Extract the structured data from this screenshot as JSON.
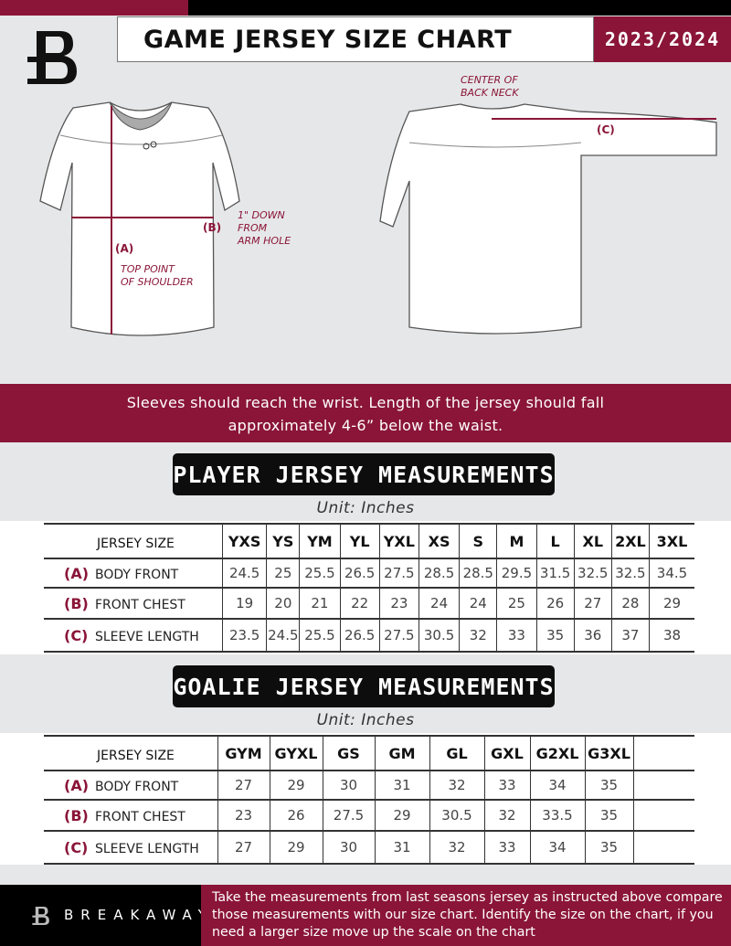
{
  "header": {
    "title": "GAME JERSEY SIZE CHART",
    "season": "2023/2024",
    "logo_letter": "B"
  },
  "diagram": {
    "front_labels": {
      "a": "(A)",
      "a_note": "TOP POINT\nOF SHOULDER",
      "b": "(B)",
      "b_note": "1\" DOWN\nFROM\nARM HOLE"
    },
    "back_labels": {
      "c": "(C)",
      "c_note": "CENTER OF\nBACK NECK"
    }
  },
  "banner": {
    "line1": "Sleeves should reach the wrist. Length of the jersey should fall",
    "line2": "approximately 4-6” below the waist."
  },
  "player": {
    "heading": "PLAYER JERSEY MEASUREMENTS",
    "unit": "Unit: Inches",
    "size_header": "JERSEY SIZE",
    "sizes": [
      "YXS",
      "YS",
      "YM",
      "YL",
      "YXL",
      "XS",
      "S",
      "M",
      "L",
      "XL",
      "2XL",
      "3XL"
    ],
    "rows": [
      {
        "letter": "(A)",
        "label": "BODY FRONT",
        "values": [
          "24.5",
          "25",
          "25.5",
          "26.5",
          "27.5",
          "28.5",
          "28.5",
          "29.5",
          "31.5",
          "32.5",
          "32.5",
          "34.5"
        ]
      },
      {
        "letter": "(B)",
        "label": "FRONT CHEST",
        "values": [
          "19",
          "20",
          "21",
          "22",
          "23",
          "24",
          "24",
          "25",
          "26",
          "27",
          "28",
          "29"
        ]
      },
      {
        "letter": "(C)",
        "label": "SLEEVE LENGTH",
        "values": [
          "23.5",
          "24.5",
          "25.5",
          "26.5",
          "27.5",
          "30.5",
          "32",
          "33",
          "35",
          "36",
          "37",
          "38"
        ]
      }
    ]
  },
  "goalie": {
    "heading": "GOALIE JERSEY MEASUREMENTS",
    "unit": "Unit: Inches",
    "size_header": "JERSEY SIZE",
    "sizes": [
      "GYM",
      "GYXL",
      "GS",
      "GM",
      "GL",
      "GXL",
      "G2XL",
      "G3XL",
      ""
    ],
    "rows": [
      {
        "letter": "(A)",
        "label": "BODY FRONT",
        "values": [
          "27",
          "29",
          "30",
          "31",
          "32",
          "33",
          "34",
          "35",
          ""
        ]
      },
      {
        "letter": "(B)",
        "label": "FRONT CHEST",
        "values": [
          "23",
          "26",
          "27.5",
          "29",
          "30.5",
          "32",
          "33.5",
          "35",
          ""
        ]
      },
      {
        "letter": "(C)",
        "label": "SLEEVE LENGTH",
        "values": [
          "27",
          "29",
          "30",
          "31",
          "32",
          "33",
          "34",
          "35",
          ""
        ]
      }
    ]
  },
  "footer": {
    "brand": "BREAKAWAY",
    "text": "Take the measurements from last seasons jersey as instructed above compare those measurements  with our size chart. Identify the size on the chart, if you need a larger size move up the scale on the chart"
  },
  "colors": {
    "accent": "#8a1538",
    "background": "#e6e7e8",
    "dark": "#0d0d0d"
  }
}
